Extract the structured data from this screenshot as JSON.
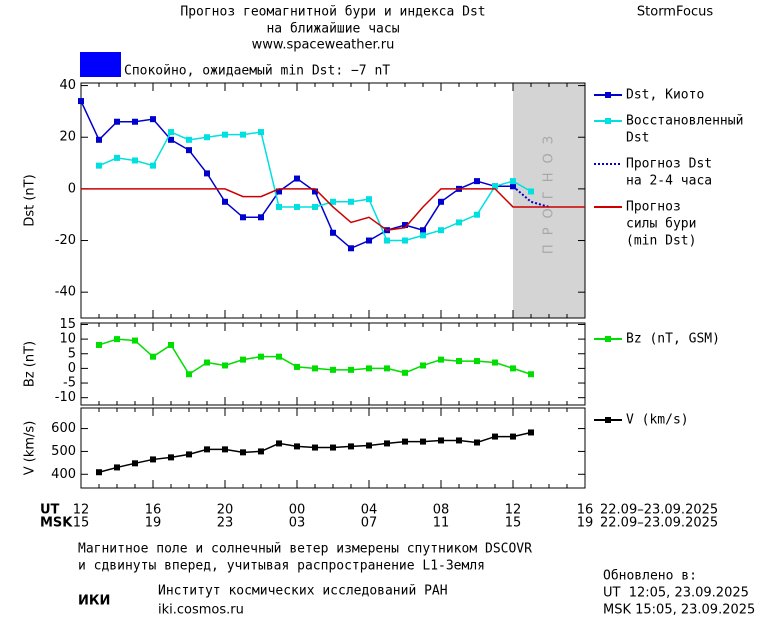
{
  "header": {
    "title": "Прогноз геомагнитной бури и индекса Dst",
    "subtitle": "на ближайшие часы",
    "url": "www.spaceweather.ru",
    "brand": "StormFocus"
  },
  "status": {
    "color": "#0000ff",
    "text": "Спокойно, ожидаемый min Dst: −7 nT"
  },
  "chart_data": [
    {
      "type": "line",
      "ylabel": "Dst (nT)",
      "xlim": [
        0,
        28
      ],
      "ylim": [
        -50,
        41
      ],
      "yticks": [
        -40,
        -20,
        0,
        20,
        40
      ],
      "forecast": {
        "start": 24,
        "label": "ПРОГНОЗ",
        "color": "#d4d4d4"
      },
      "series": [
        {
          "name": [
            "Dst, Киото"
          ],
          "color": "#0000cc",
          "marker": "square",
          "dash": "solid",
          "x": [
            0,
            1,
            2,
            3,
            4,
            5,
            6,
            7,
            8,
            9,
            10,
            11,
            12,
            13,
            14,
            15,
            16,
            17,
            18,
            19,
            20,
            21,
            22,
            23,
            24
          ],
          "values": [
            34,
            19,
            26,
            26,
            27,
            19,
            15,
            6,
            -5,
            -11,
            -11,
            -1,
            4,
            -1,
            -17,
            -23,
            -20,
            -16,
            -14,
            -16,
            -5,
            0,
            3,
            1,
            1
          ]
        },
        {
          "name": [
            "Восстановленный",
            "Dst"
          ],
          "color": "#00e0e0",
          "marker": "square",
          "dash": "solid",
          "x": [
            1,
            2,
            3,
            4,
            5,
            6,
            7,
            8,
            9,
            10,
            11,
            12,
            13,
            14,
            15,
            16,
            17,
            18,
            19,
            20,
            21,
            22,
            23,
            24,
            25
          ],
          "values": [
            9,
            12,
            11,
            9,
            22,
            19,
            20,
            21,
            21,
            22,
            -7,
            -7,
            -7,
            -5,
            -5,
            -4,
            -20,
            -20,
            -18,
            -16,
            -13,
            -10,
            1,
            3,
            -1
          ]
        },
        {
          "name": [
            "Прогноз Dst",
            "на 2-4 часа"
          ],
          "color": "#0000cc",
          "marker": "none",
          "dash": "dotted",
          "x": [
            24,
            25,
            26
          ],
          "values": [
            1,
            -5,
            -7
          ]
        },
        {
          "name": [
            "Прогноз",
            "силы бури",
            "(min Dst)"
          ],
          "color": "#cc0000",
          "marker": "none",
          "dash": "solid",
          "x": [
            0,
            8,
            9,
            10,
            11,
            13,
            14,
            15,
            16,
            17,
            18,
            19,
            20,
            23,
            24,
            28
          ],
          "values": [
            0,
            0,
            -3,
            -3,
            0,
            0,
            -7,
            -13,
            -11,
            -16,
            -15,
            -7,
            0,
            0,
            -7,
            -7
          ]
        }
      ]
    },
    {
      "type": "line",
      "ylabel": "Bz (nT)",
      "xlim": [
        0,
        28
      ],
      "ylim": [
        -12.5,
        15.5
      ],
      "yticks": [
        -10,
        -5,
        0,
        5,
        10,
        15
      ],
      "series": [
        {
          "name": [
            "Bz (nT, GSM)"
          ],
          "color": "#00dd00",
          "marker": "square",
          "dash": "solid",
          "x": [
            1,
            2,
            3,
            4,
            5,
            6,
            7,
            8,
            9,
            10,
            11,
            12,
            13,
            14,
            15,
            16,
            17,
            18,
            19,
            20,
            21,
            22,
            23,
            24,
            25
          ],
          "values": [
            8,
            10,
            9.5,
            4,
            8,
            -2,
            2,
            1,
            3,
            4,
            4,
            0.5,
            0,
            -0.5,
            -0.5,
            0,
            0,
            -1.5,
            1,
            3,
            2.5,
            2.5,
            2,
            0,
            -2
          ]
        }
      ]
    },
    {
      "type": "line",
      "ylabel": "V (km/s)",
      "xlim": [
        0,
        28
      ],
      "ylim": [
        340,
        690
      ],
      "yticks": [
        400,
        500,
        600
      ],
      "xlabel": "UT",
      "x2label": "MSK",
      "xticks": [
        {
          "value": 0,
          "label": "12"
        },
        {
          "value": 4,
          "label": "16"
        },
        {
          "value": 8,
          "label": "20"
        },
        {
          "value": 12,
          "label": "00"
        },
        {
          "value": 16,
          "label": "04"
        },
        {
          "value": 20,
          "label": "08"
        },
        {
          "value": 24,
          "label": "12"
        },
        {
          "value": 28,
          "label": "16"
        }
      ],
      "x2ticks": [
        {
          "value": 0,
          "label": "15"
        },
        {
          "value": 4,
          "label": "19"
        },
        {
          "value": 8,
          "label": "23"
        },
        {
          "value": 12,
          "label": "03"
        },
        {
          "value": 16,
          "label": "07"
        },
        {
          "value": 20,
          "label": "11"
        },
        {
          "value": 24,
          "label": "15"
        },
        {
          "value": 28,
          "label": "19"
        }
      ],
      "xdate": "22.09–23.09.2025",
      "x2date": "22.09–23.09.2025",
      "series": [
        {
          "name": [
            "V (km/s)"
          ],
          "color": "#000000",
          "marker": "square",
          "dash": "solid",
          "x": [
            1,
            2,
            3,
            4,
            5,
            6,
            7,
            8,
            9,
            10,
            11,
            12,
            13,
            14,
            15,
            16,
            17,
            18,
            19,
            20,
            21,
            22,
            23,
            24,
            25
          ],
          "values": [
            409,
            430,
            448,
            465,
            474,
            487,
            509,
            509,
            496,
            500,
            535,
            522,
            517,
            517,
            522,
            526,
            535,
            543,
            543,
            548,
            548,
            539,
            565,
            565,
            583
          ]
        }
      ]
    }
  ],
  "footer": {
    "note": [
      "Магнитное поле и солнечный ветер измерены спутником DSCOVR",
      "и сдвинуты вперед, учитывая распространение L1-Земля"
    ],
    "logo": "ИКИ",
    "institute": "Институт космических исследований РАН",
    "site": "iki.cosmos.ru",
    "updated": [
      "Обновлено в:",
      "UT  12:05, 23.09.2025",
      "MSK 15:05, 23.09.2025"
    ]
  }
}
